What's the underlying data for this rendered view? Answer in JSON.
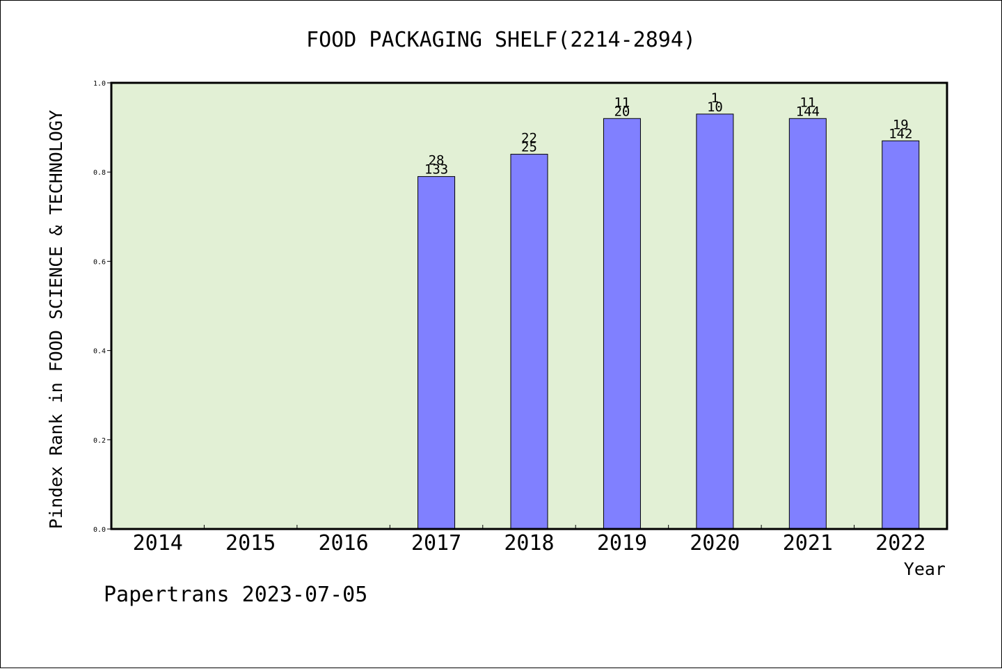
{
  "chart_data": {
    "type": "bar",
    "title": "FOOD PACKAGING SHELF(2214-2894)",
    "xlabel": "Year",
    "ylabel": "Pindex Rank in FOOD SCIENCE & TECHNOLOGY",
    "ylim": [
      0,
      1.0
    ],
    "yticks": [
      "0.0",
      "0.2",
      "0.4",
      "0.6",
      "0.8",
      "1.0"
    ],
    "categories": [
      "2014",
      "2015",
      "2016",
      "2017",
      "2018",
      "2019",
      "2020",
      "2021",
      "2022"
    ],
    "values": [
      null,
      null,
      null,
      0.79,
      0.84,
      0.92,
      0.93,
      0.92,
      0.87
    ],
    "labels_top": [
      "",
      "",
      "",
      "28",
      "22",
      "11",
      "1",
      "11",
      "19"
    ],
    "labels_bottom": [
      "",
      "",
      "",
      "133",
      "25",
      "20",
      "10",
      "144",
      "142"
    ],
    "grid": false,
    "plot_background": "#e2f0d5",
    "bar_color": "#8080ff"
  },
  "footer": "Papertrans 2023-07-05"
}
